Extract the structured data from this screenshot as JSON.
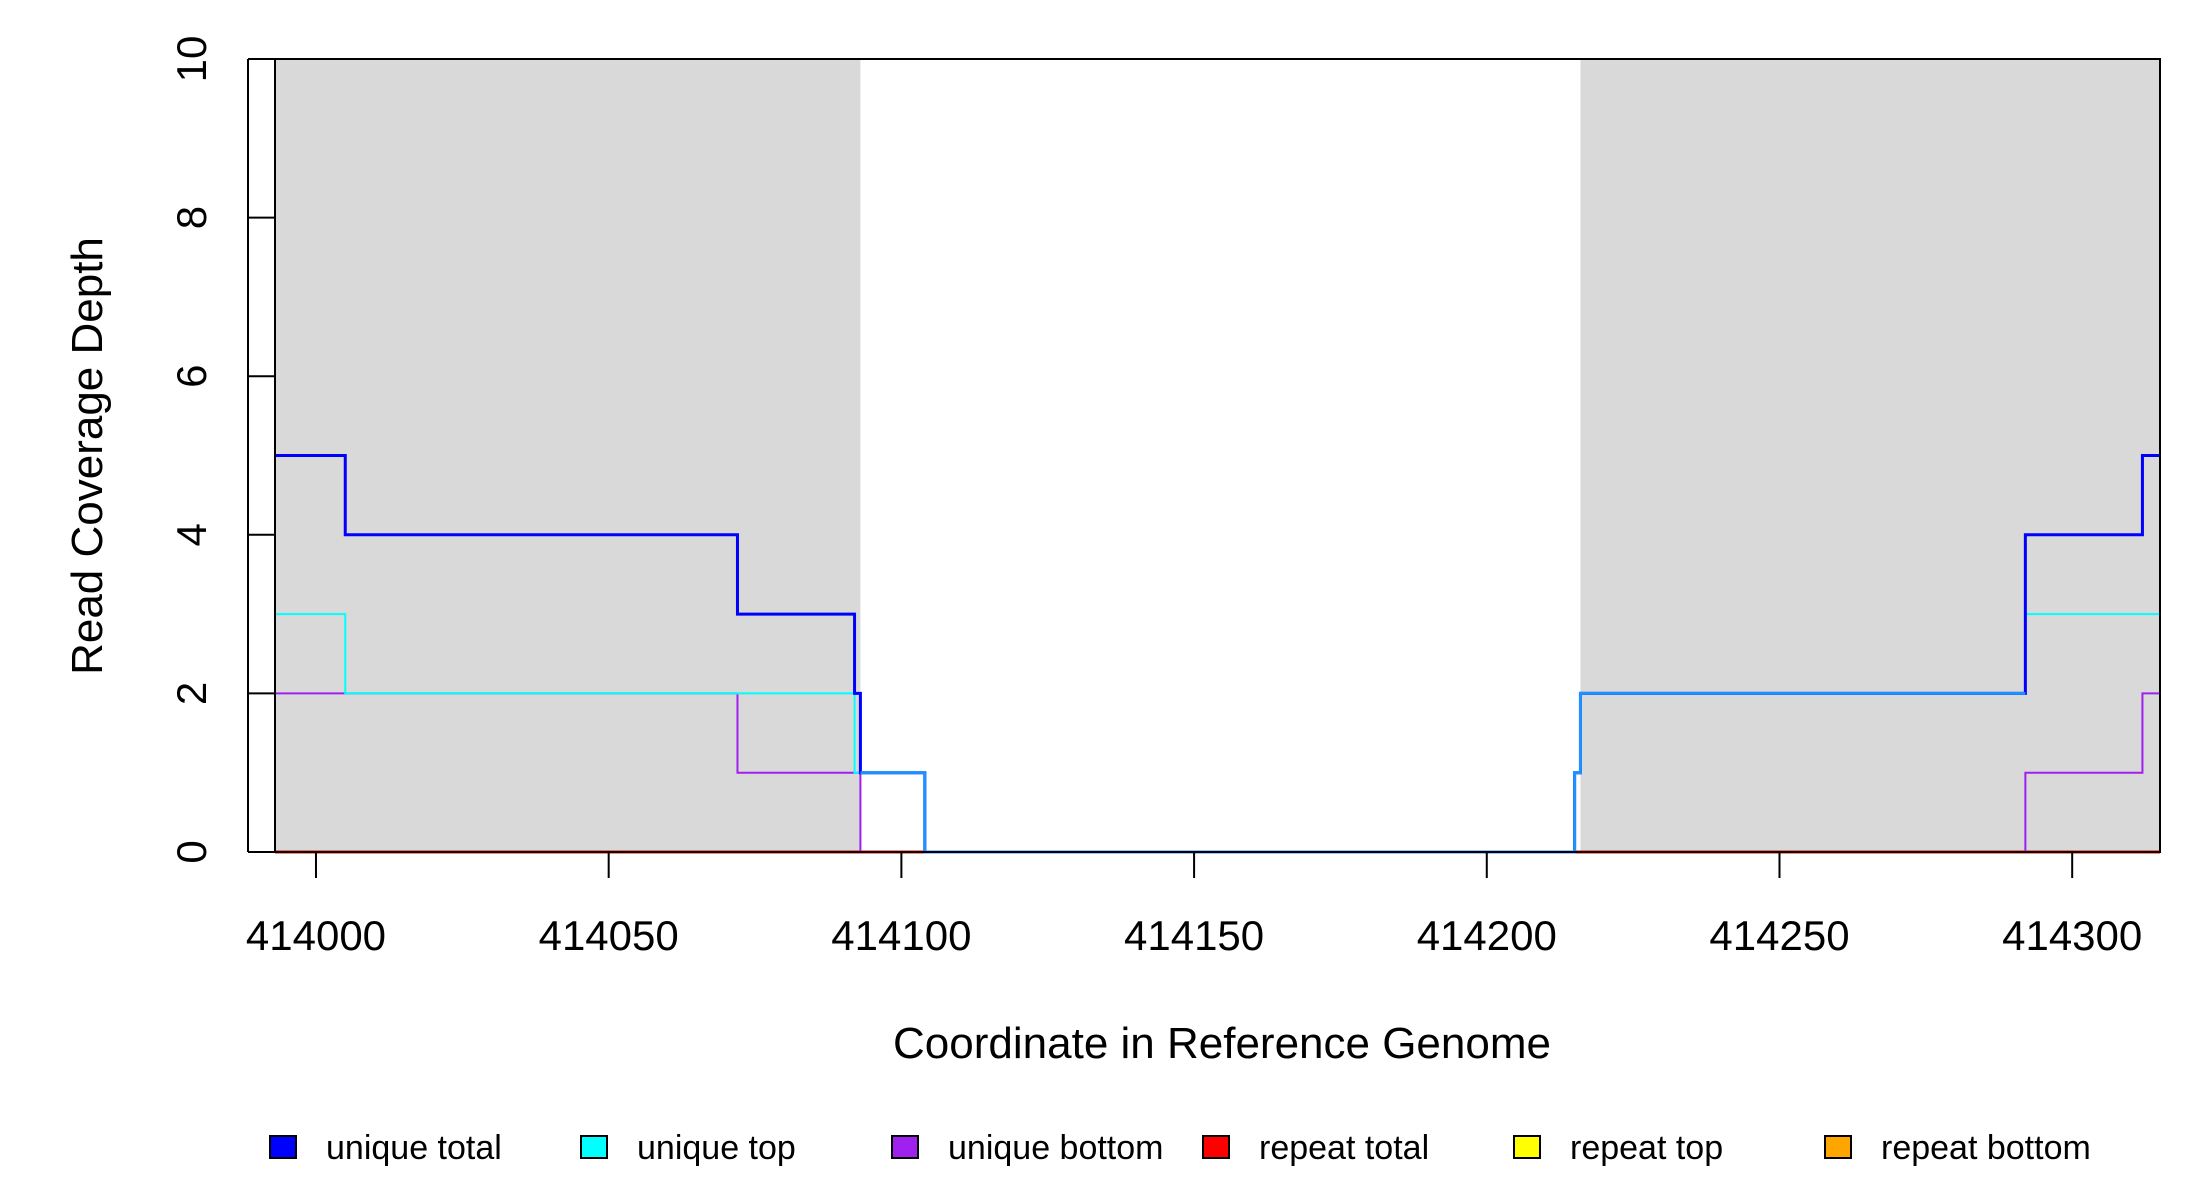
{
  "chart_data": {
    "type": "line",
    "xlabel": "Coordinate in Reference Genome",
    "ylabel": "Read Coverage Depth",
    "xlim": [
      413993,
      414315
    ],
    "ylim": [
      0,
      10
    ],
    "x_ticks": [
      414000,
      414050,
      414100,
      414150,
      414200,
      414250,
      414300
    ],
    "x_tick_labels": [
      "414000",
      "414050",
      "414100",
      "414150",
      "414200",
      "414250",
      "414300"
    ],
    "y_ticks": [
      0,
      2,
      4,
      6,
      8,
      10
    ],
    "y_tick_labels": [
      "0",
      "2",
      "4",
      "6",
      "8",
      "10"
    ],
    "grid": false,
    "legend_position": "bottom",
    "shaded_regions": [
      {
        "x": [
          413993,
          414093
        ],
        "color": "#d9d9d9"
      },
      {
        "x": [
          414216,
          414315
        ],
        "color": "#d9d9d9"
      }
    ],
    "series": [
      {
        "name": "unique total",
        "color": "#0000ff",
        "x": [
          413993,
          414005,
          414005,
          414072,
          414072,
          414092,
          414092,
          414093,
          414093,
          414104,
          414104,
          414215,
          414215,
          414216,
          414216,
          414292,
          414292,
          414312,
          414312,
          414315
        ],
        "y": [
          5,
          5,
          4,
          4,
          3,
          3,
          2,
          2,
          1,
          1,
          0,
          0,
          1,
          1,
          2,
          2,
          4,
          4,
          5,
          5
        ]
      },
      {
        "name": "unique top",
        "color": "#00ffff",
        "x": [
          413993,
          414005,
          414005,
          414092,
          414092,
          414093,
          414093,
          414104,
          414104,
          414215,
          414215,
          414216,
          414216,
          414292,
          414292,
          414315
        ],
        "y": [
          3,
          3,
          2,
          2,
          1,
          1,
          1,
          1,
          0,
          0,
          1,
          1,
          2,
          2,
          3,
          3
        ]
      },
      {
        "name": "unique bottom",
        "color": "#a020f0",
        "x": [
          413993,
          414072,
          414072,
          414093,
          414093,
          414292,
          414292,
          414312,
          414312,
          414315
        ],
        "y": [
          2,
          2,
          1,
          1,
          0,
          0,
          1,
          1,
          2,
          2
        ]
      },
      {
        "name": "repeat total",
        "color": "#ff0000",
        "x": [
          413993,
          414315
        ],
        "y": [
          0,
          0
        ]
      },
      {
        "name": "repeat top",
        "color": "#ffff00",
        "x": [
          413993,
          414315
        ],
        "y": [
          0,
          0
        ]
      },
      {
        "name": "repeat bottom",
        "color": "#ffa500",
        "x": [
          413993,
          414315
        ],
        "y": [
          0,
          0
        ]
      }
    ],
    "overlap_series": {
      "color": "#1e90ff",
      "segments": [
        {
          "x": [
            414093,
            414104,
            414104,
            414215,
            414215,
            414216,
            414216,
            414292
          ],
          "y": [
            1,
            1,
            0,
            0,
            1,
            1,
            2,
            2
          ]
        }
      ]
    },
    "legend": [
      {
        "label": "unique total",
        "color": "#0000ff"
      },
      {
        "label": "unique top",
        "color": "#00ffff"
      },
      {
        "label": "unique bottom",
        "color": "#a020f0"
      },
      {
        "label": "repeat total",
        "color": "#ff0000"
      },
      {
        "label": "repeat top",
        "color": "#ffff00"
      },
      {
        "label": "repeat bottom",
        "color": "#ffa500"
      }
    ]
  }
}
